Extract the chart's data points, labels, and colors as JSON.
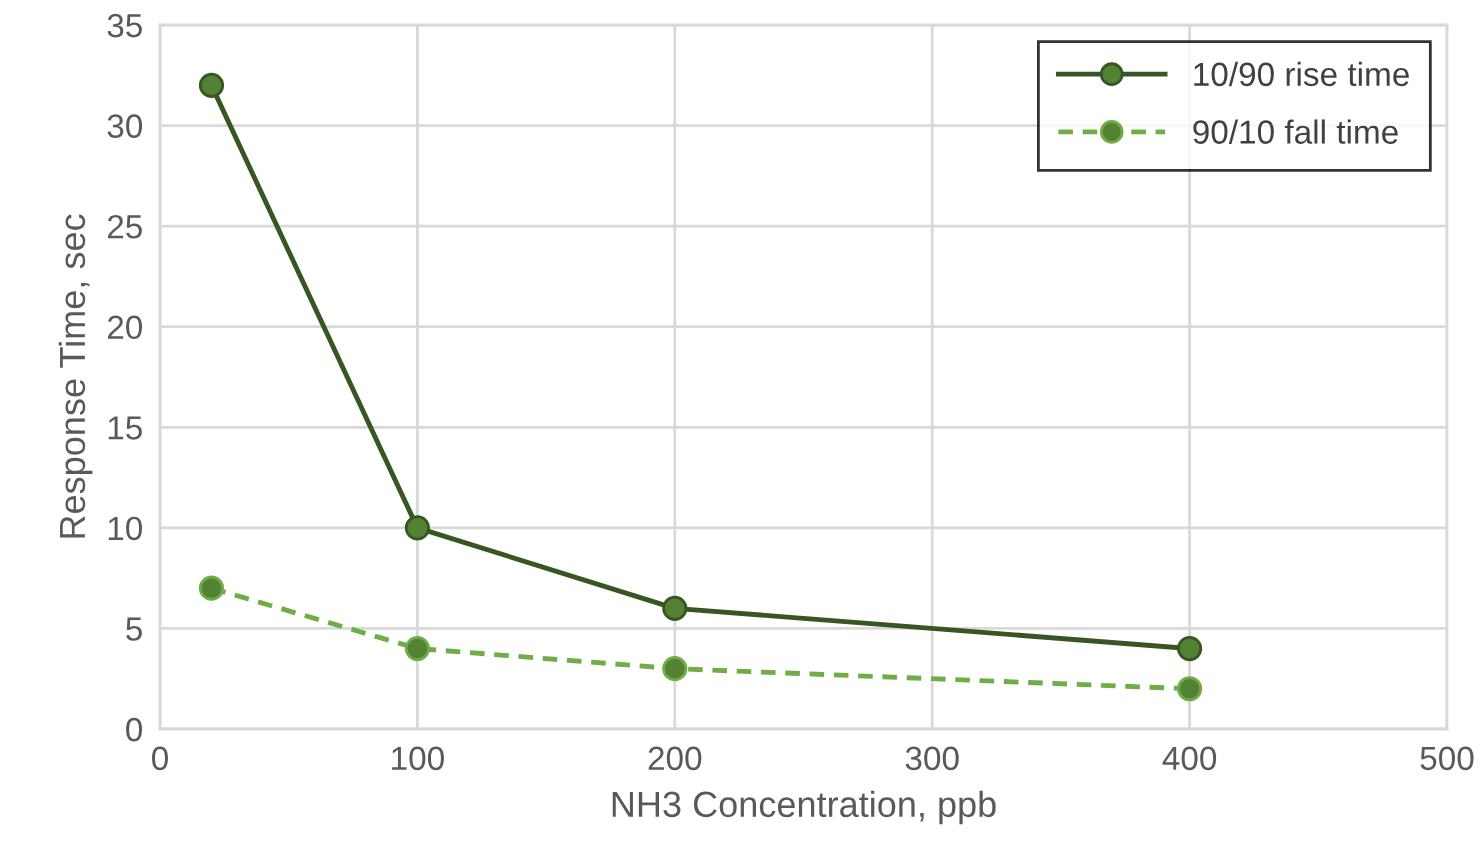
{
  "chart_data": {
    "type": "line",
    "xlabel": "NH3 Concentration, ppb",
    "ylabel": "Response Time, sec",
    "x": [
      20,
      100,
      200,
      400
    ],
    "series": [
      {
        "name": "10/90 rise time",
        "color": "#375623",
        "values": [
          32,
          10,
          6,
          4
        ],
        "line_style": "solid"
      },
      {
        "name": "90/10 fall time",
        "color": "#70ad47",
        "values": [
          7,
          4,
          3,
          2
        ],
        "line_style": "dashed"
      }
    ],
    "xlim": [
      0,
      500
    ],
    "xticks": [
      0,
      100,
      200,
      300,
      400,
      500
    ],
    "ylim": [
      0,
      35
    ],
    "yticks": [
      0,
      5,
      10,
      15,
      20,
      25,
      30,
      35
    ],
    "grid": true,
    "legend": "top right",
    "marker": "circle"
  }
}
